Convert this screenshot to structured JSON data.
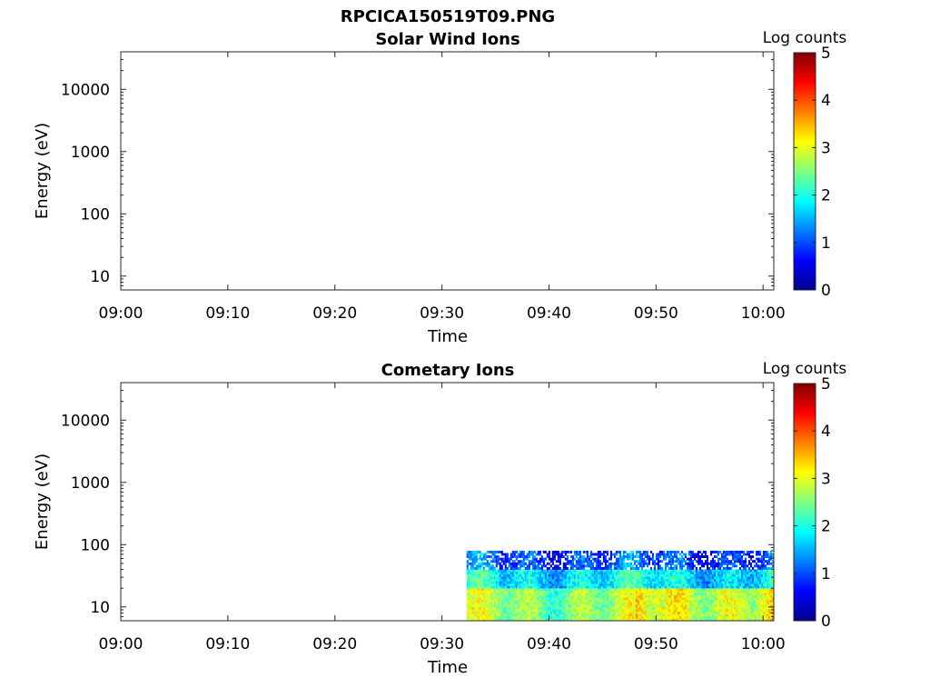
{
  "figure": {
    "title": "RPCICA150519T09.PNG"
  },
  "chart_data": [
    {
      "type": "heatmap",
      "title": "Solar Wind Ions",
      "xlabel": "Time",
      "ylabel": "Energy (eV)",
      "x_ticks": [
        "09:00",
        "09:10",
        "09:20",
        "09:30",
        "09:40",
        "09:50",
        "10:00"
      ],
      "xlim": [
        "09:00",
        "10:01"
      ],
      "y_scale": "log",
      "y_ticks": [
        "10",
        "100",
        "1000",
        "10000"
      ],
      "ylim": [
        6,
        40000
      ],
      "colorbar": {
        "label": "Log counts",
        "ticks": [
          "0",
          "1",
          "2",
          "3",
          "4",
          "5"
        ],
        "range": [
          0,
          5
        ],
        "colormap": "jet"
      },
      "data_present": false,
      "note": ""
    },
    {
      "type": "heatmap",
      "title": "Cometary Ions",
      "xlabel": "Time",
      "ylabel": "Energy (eV)",
      "x_ticks": [
        "09:00",
        "09:10",
        "09:20",
        "09:30",
        "09:40",
        "09:50",
        "10:00"
      ],
      "xlim": [
        "09:00",
        "10:01"
      ],
      "y_scale": "log",
      "y_ticks": [
        "10",
        "100",
        "1000",
        "10000"
      ],
      "ylim": [
        6,
        40000
      ],
      "colorbar": {
        "label": "Log counts",
        "ticks": [
          "0",
          "1",
          "2",
          "3",
          "4",
          "5"
        ],
        "range": [
          0,
          5
        ],
        "colormap": "jet"
      },
      "data_present": true,
      "data_time_range": [
        "09:32",
        "10:01"
      ],
      "data_energy_range": [
        6,
        80
      ],
      "log_counts_estimate": {
        "above_40eV": 1.0,
        "20_to_40eV": 1.8,
        "below_20eV": 2.6
      }
    }
  ]
}
